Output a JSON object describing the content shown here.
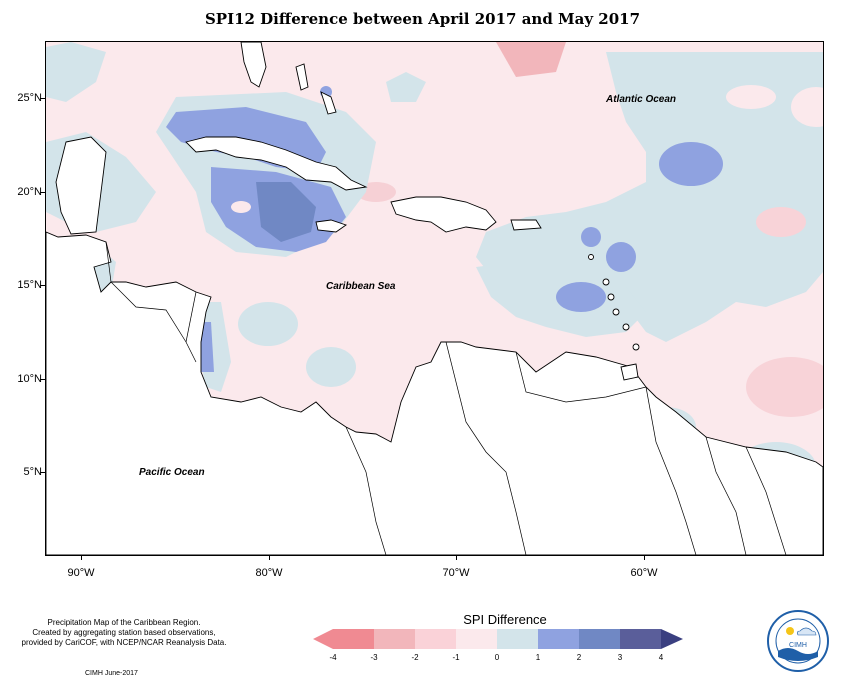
{
  "title": "SPI12 Difference between April 2017 and May 2017",
  "axes": {
    "lat_labels": [
      "25°N",
      "20°N",
      "15°N",
      "10°N",
      "5°N"
    ],
    "lon_labels": [
      "90°W",
      "80°W",
      "70°W",
      "60°W"
    ]
  },
  "places": {
    "atlantic": "Atlantic Ocean",
    "caribbean": "Caribbean Sea",
    "pacific": "Pacific Ocean"
  },
  "legend": {
    "title": "SPI Difference",
    "ticks": [
      "-4",
      "-3",
      "-2",
      "-1",
      "0",
      "1",
      "2",
      "3",
      "4"
    ],
    "colors": [
      "#f08a92",
      "#f2b6bb",
      "#fad2d8",
      "#fbe9ec",
      "#d3e4ea",
      "#8fa2e0",
      "#7088c4",
      "#5a5e9a",
      "#3a3f80"
    ]
  },
  "notes": {
    "line1": "Precipitation Map of the Caribbean Region.",
    "line2": "Created by aggregating station based observations,",
    "line3": "provided by CariCOF, with NCEP/NCAR Reanalysis Data.",
    "credit": "CIMH June-2017"
  },
  "logo": {
    "text": "CIMH"
  }
}
